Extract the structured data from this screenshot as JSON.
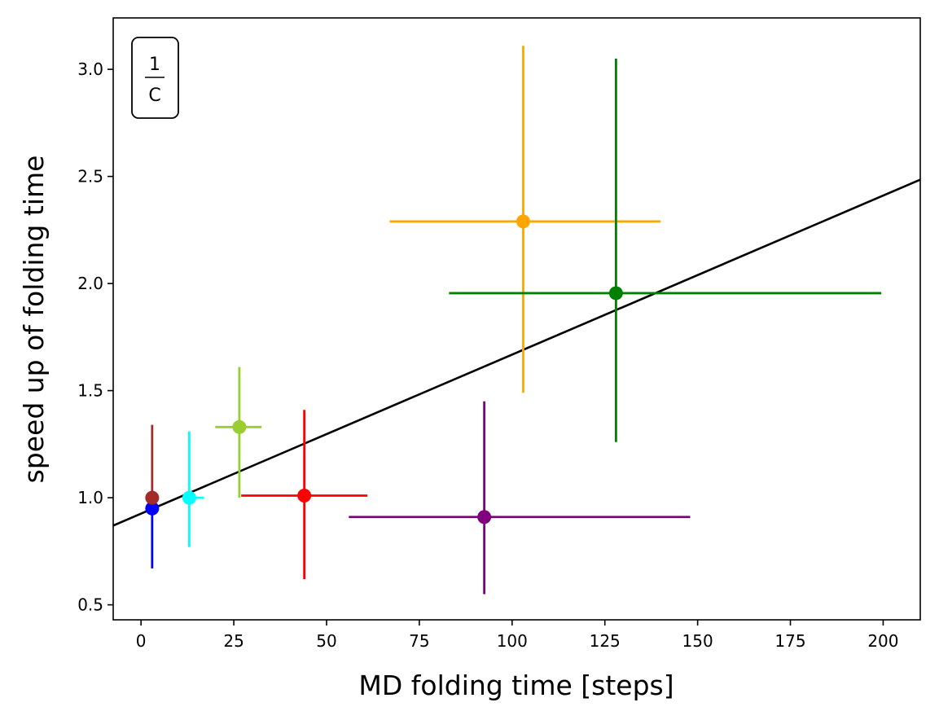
{
  "chart_data": {
    "type": "scatter",
    "title": "",
    "xlabel": "MD folding time [steps]",
    "ylabel": "speed up of folding time",
    "xlim": [
      -7.5,
      210
    ],
    "ylim": [
      0.43,
      3.24
    ],
    "xticks": [
      0,
      25,
      50,
      75,
      100,
      125,
      150,
      175,
      200
    ],
    "yticks": [
      0.5,
      1.0,
      1.5,
      2.0,
      2.5,
      3.0
    ],
    "xtick_labels": [
      "0",
      "25",
      "50",
      "75",
      "100",
      "125",
      "150",
      "175",
      "200"
    ],
    "ytick_labels": [
      "0.5",
      "1.0",
      "1.5",
      "2.0",
      "2.5",
      "3.0"
    ],
    "grid": false,
    "legend": "none",
    "annotation": {
      "numerator": "1",
      "denominator": "C",
      "position": "top-left"
    },
    "fit_line": {
      "color": "#000000",
      "x": [
        -7.5,
        210
      ],
      "y": [
        0.87,
        2.485
      ]
    },
    "points": [
      {
        "color": "#0000ff",
        "x": 3,
        "y": 0.95,
        "xerr": [
          3,
          3
        ],
        "yerr": [
          0.67,
          0.95
        ]
      },
      {
        "color": "#a52a2a",
        "x": 3,
        "y": 1.0,
        "xerr": [
          3,
          3
        ],
        "yerr": [
          0.95,
          1.34
        ]
      },
      {
        "color": "#00ffff",
        "x": 13,
        "y": 1.0,
        "xerr": [
          12,
          17
        ],
        "yerr": [
          0.77,
          1.31
        ]
      },
      {
        "color": "#9acd32",
        "x": 26.5,
        "y": 1.33,
        "xerr": [
          20,
          32.5
        ],
        "yerr": [
          1.0,
          1.61
        ]
      },
      {
        "color": "#ff0000",
        "x": 44,
        "y": 1.01,
        "xerr": [
          27,
          61
        ],
        "yerr": [
          0.62,
          1.41
        ]
      },
      {
        "color": "#800080",
        "x": 92.5,
        "y": 0.91,
        "xerr": [
          56,
          148
        ],
        "yerr": [
          0.55,
          1.45
        ]
      },
      {
        "color": "#ffa500",
        "x": 103,
        "y": 2.29,
        "xerr": [
          67,
          140
        ],
        "yerr": [
          1.49,
          3.11
        ]
      },
      {
        "color": "#008000",
        "x": 128,
        "y": 1.955,
        "xerr": [
          83,
          199.5
        ],
        "yerr": [
          1.26,
          3.05
        ]
      }
    ]
  }
}
